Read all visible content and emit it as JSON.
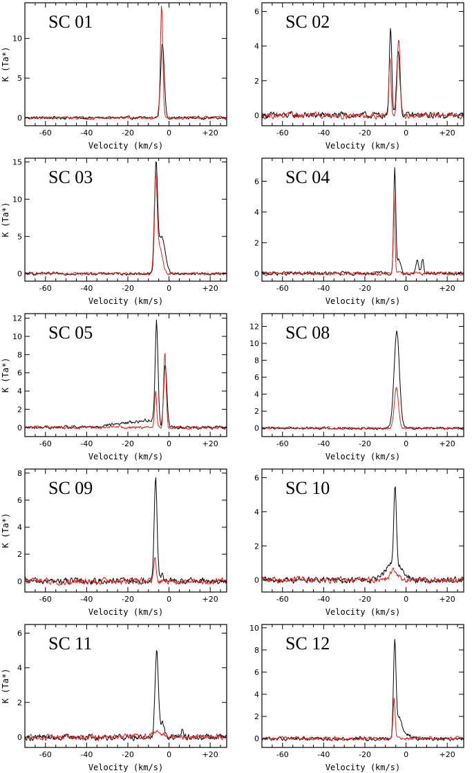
{
  "figure": {
    "description_series": [
      "black",
      "red"
    ]
  },
  "colors": {
    "black_series": "#000000",
    "red_series": "#e0201c"
  },
  "chart_data": [
    {
      "type": "line",
      "title": "SC 01",
      "xlabel": "Velocity (km/s)",
      "ylabel": "K (Ta*)",
      "xlim": [
        -70,
        28
      ],
      "ylim": [
        -1,
        14.5
      ],
      "xticks": [
        -60,
        -40,
        -20,
        0,
        20
      ],
      "xtick_labels": [
        "-60",
        "-40",
        "-20",
        "0",
        "+20"
      ],
      "yticks": [
        0,
        5,
        10
      ],
      "ytick_labels": [
        "0",
        "5",
        "10"
      ],
      "noise": 0.15,
      "series": [
        {
          "name": "black",
          "components": [
            {
              "c": -3.2,
              "a": 9.3,
              "w": 0.9
            }
          ]
        },
        {
          "name": "red",
          "components": [
            {
              "c": -3.6,
              "a": 14.2,
              "w": 0.6
            }
          ]
        }
      ]
    },
    {
      "type": "line",
      "title": "SC 02",
      "xlabel": "Velocity (km/s)",
      "ylabel": "",
      "xlim": [
        -70,
        28
      ],
      "ylim": [
        -0.6,
        6.5
      ],
      "xticks": [
        -60,
        -40,
        -20,
        0,
        20
      ],
      "xtick_labels": [
        "-60",
        "-40",
        "-20",
        "0",
        "+20"
      ],
      "yticks": [
        0,
        2,
        4,
        6
      ],
      "ytick_labels": [
        "0",
        "2",
        "4",
        "6"
      ],
      "noise": 0.15,
      "series": [
        {
          "name": "black",
          "components": [
            {
              "c": -7.5,
              "a": 5.1,
              "w": 0.6
            },
            {
              "c": -3.8,
              "a": 3.8,
              "w": 0.8
            }
          ]
        },
        {
          "name": "red",
          "components": [
            {
              "c": -7.8,
              "a": 3.3,
              "w": 0.5
            },
            {
              "c": -3.6,
              "a": 4.4,
              "w": 0.7
            }
          ]
        }
      ]
    },
    {
      "type": "line",
      "title": "SC 03",
      "xlabel": "Velocity (km/s)",
      "ylabel": "K (Ta*)",
      "xlim": [
        -70,
        28
      ],
      "ylim": [
        -1,
        15.5
      ],
      "xticks": [
        -60,
        -40,
        -20,
        0,
        20
      ],
      "xtick_labels": [
        "-60",
        "-40",
        "-20",
        "0",
        "+20"
      ],
      "yticks": [
        0,
        5,
        10,
        15
      ],
      "ytick_labels": [
        "0",
        "5",
        "10",
        "15"
      ],
      "noise": 0.15,
      "series": [
        {
          "name": "black",
          "components": [
            {
              "c": -6.3,
              "a": 13.8,
              "w": 0.7
            },
            {
              "c": -4.0,
              "a": 4.5,
              "w": 1.5
            },
            {
              "c": -2.0,
              "a": 1.5,
              "w": 1.2
            }
          ]
        },
        {
          "name": "red",
          "components": [
            {
              "c": -6.5,
              "a": 12.5,
              "w": 0.7
            },
            {
              "c": -4.5,
              "a": 3.5,
              "w": 1.3
            }
          ]
        }
      ]
    },
    {
      "type": "line",
      "title": "SC 04",
      "xlabel": "Velocity (km/s)",
      "ylabel": "",
      "xlim": [
        -70,
        28
      ],
      "ylim": [
        -0.5,
        7.5
      ],
      "xticks": [
        -60,
        -40,
        -20,
        0,
        20
      ],
      "xtick_labels": [
        "-60",
        "-40",
        "-20",
        "0",
        "+20"
      ],
      "yticks": [
        0,
        2,
        4,
        6
      ],
      "ytick_labels": [
        "0",
        "2",
        "4",
        "6"
      ],
      "noise": 0.1,
      "series": [
        {
          "name": "black",
          "components": [
            {
              "c": -5.5,
              "a": 6.9,
              "w": 0.5
            },
            {
              "c": -3.5,
              "a": 0.9,
              "w": 1.0
            },
            {
              "c": 5.5,
              "a": 0.8,
              "w": 0.6
            },
            {
              "c": 8.0,
              "a": 0.9,
              "w": 0.6
            }
          ]
        },
        {
          "name": "red",
          "components": [
            {
              "c": -5.8,
              "a": 5.1,
              "w": 0.4
            }
          ]
        }
      ]
    },
    {
      "type": "line",
      "title": "SC 05",
      "xlabel": "Velocity (km/s)",
      "ylabel": "K (Ta*)",
      "xlim": [
        -70,
        28
      ],
      "ylim": [
        -1,
        12.5
      ],
      "xticks": [
        -60,
        -40,
        -20,
        0,
        20
      ],
      "xtick_labels": [
        "-60",
        "-40",
        "-20",
        "0",
        "+20"
      ],
      "yticks": [
        0,
        2,
        4,
        6,
        8,
        10,
        12
      ],
      "ytick_labels": [
        "0",
        "2",
        "4",
        "6",
        "8",
        "10",
        "12"
      ],
      "noise": 0.15,
      "series": [
        {
          "name": "black",
          "components": [
            {
              "c": -6.0,
              "a": 11.0,
              "w": 0.7
            },
            {
              "c": -1.8,
              "a": 6.8,
              "w": 0.8
            }
          ],
          "ramp": {
            "start": -40,
            "end": -6,
            "amp": 0.9
          }
        },
        {
          "name": "red",
          "components": [
            {
              "c": -6.5,
              "a": 4.0,
              "w": 0.5
            },
            {
              "c": -2.0,
              "a": 8.4,
              "w": 0.6
            }
          ]
        }
      ]
    },
    {
      "type": "line",
      "title": "SC 08",
      "xlabel": "Velocity (km/s)",
      "ylabel": "",
      "xlim": [
        -70,
        28
      ],
      "ylim": [
        -1,
        13.5
      ],
      "xticks": [
        -60,
        -40,
        -20,
        0,
        20
      ],
      "xtick_labels": [
        "-60",
        "-40",
        "-20",
        "0",
        "+20"
      ],
      "yticks": [
        0,
        2,
        4,
        6,
        8,
        10,
        12
      ],
      "ytick_labels": [
        "0",
        "2",
        "4",
        "6",
        "8",
        "10",
        "12"
      ],
      "noise": 0.12,
      "series": [
        {
          "name": "black",
          "components": [
            {
              "c": -4.5,
              "a": 11.4,
              "w": 1.3
            }
          ]
        },
        {
          "name": "red",
          "components": [
            {
              "c": -4.7,
              "a": 4.7,
              "w": 1.0
            }
          ]
        }
      ]
    },
    {
      "type": "line",
      "title": "SC 09",
      "xlabel": "Velocity (km/s)",
      "ylabel": "K (Ta*)",
      "xlim": [
        -70,
        28
      ],
      "ylim": [
        -0.8,
        8.3
      ],
      "xticks": [
        -60,
        -40,
        -20,
        0,
        20
      ],
      "xtick_labels": [
        "-60",
        "-40",
        "-20",
        "0",
        "+20"
      ],
      "yticks": [
        0,
        2,
        4,
        6,
        8
      ],
      "ytick_labels": [
        "0",
        "2",
        "4",
        "6",
        "8"
      ],
      "noise": 0.2,
      "series": [
        {
          "name": "black",
          "components": [
            {
              "c": -6.5,
              "a": 7.7,
              "w": 0.7
            },
            {
              "c": -4.0,
              "a": 0.5,
              "w": 1.0
            }
          ]
        },
        {
          "name": "red",
          "components": [
            {
              "c": -6.8,
              "a": 1.8,
              "w": 0.6
            }
          ]
        }
      ]
    },
    {
      "type": "line",
      "title": "SC 10",
      "xlabel": "Velocity (km/s)",
      "ylabel": "",
      "xlim": [
        -70,
        28
      ],
      "ylim": [
        -0.7,
        6.5
      ],
      "xticks": [
        -60,
        -40,
        -20,
        0,
        20
      ],
      "xtick_labels": [
        "-60",
        "-40",
        "-20",
        "0",
        "+20"
      ],
      "yticks": [
        0,
        2,
        4,
        6
      ],
      "ytick_labels": [
        "0",
        "2",
        "4",
        "6"
      ],
      "noise": 0.15,
      "series": [
        {
          "name": "black",
          "components": [
            {
              "c": -5.3,
              "a": 4.6,
              "w": 0.6
            },
            {
              "c": -6.0,
              "a": 1.1,
              "w": 3.5
            }
          ]
        },
        {
          "name": "red",
          "components": [
            {
              "c": -6.0,
              "a": 0.55,
              "w": 2.0
            }
          ]
        }
      ]
    },
    {
      "type": "line",
      "title": "SC 11",
      "xlabel": "Velocity (km/s)",
      "ylabel": "K (Ta*)",
      "xlim": [
        -70,
        28
      ],
      "ylim": [
        -0.6,
        6.5
      ],
      "xticks": [
        -60,
        -40,
        -20,
        0,
        20
      ],
      "xtick_labels": [
        "-60",
        "-40",
        "-20",
        "0",
        "+20"
      ],
      "yticks": [
        0,
        2,
        4,
        6
      ],
      "ytick_labels": [
        "0",
        "2",
        "4",
        "6"
      ],
      "noise": 0.15,
      "series": [
        {
          "name": "black",
          "components": [
            {
              "c": -6.0,
              "a": 5.0,
              "w": 0.8
            },
            {
              "c": -3.5,
              "a": 0.8,
              "w": 1.2
            },
            {
              "c": 6.5,
              "a": 0.4,
              "w": 0.5
            }
          ]
        },
        {
          "name": "red",
          "components": [
            {
              "c": -6.0,
              "a": 0.3,
              "w": 2.5
            }
          ]
        }
      ]
    },
    {
      "type": "line",
      "title": "SC 12",
      "xlabel": "Velocity (km/s)",
      "ylabel": "",
      "xlim": [
        -70,
        28
      ],
      "ylim": [
        -0.8,
        10.3
      ],
      "xticks": [
        -60,
        -40,
        -20,
        0,
        20
      ],
      "xtick_labels": [
        "-60",
        "-40",
        "-20",
        "0",
        "+20"
      ],
      "yticks": [
        0,
        2,
        4,
        6,
        8,
        10
      ],
      "ytick_labels": [
        "0",
        "2",
        "4",
        "6",
        "8",
        "10"
      ],
      "noise": 0.15,
      "series": [
        {
          "name": "black",
          "components": [
            {
              "c": -5.5,
              "a": 8.6,
              "w": 0.6
            },
            {
              "c": -3.5,
              "a": 1.8,
              "w": 1.3
            },
            {
              "c": 0.0,
              "a": 0.4,
              "w": 2.0
            }
          ]
        },
        {
          "name": "red",
          "components": [
            {
              "c": -5.8,
              "a": 3.7,
              "w": 0.5
            }
          ]
        }
      ]
    }
  ]
}
